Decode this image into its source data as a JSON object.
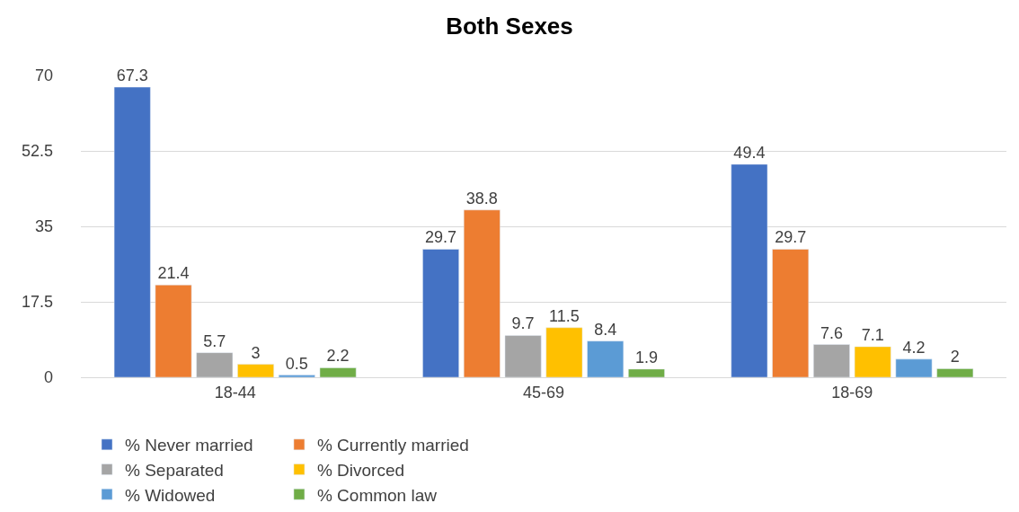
{
  "chart_data": {
    "type": "bar",
    "title": "Both Sexes",
    "categories": [
      "18-44",
      "45-69",
      "18-69"
    ],
    "series": [
      {
        "name": "% Never married",
        "color": "#4472c4",
        "values": [
          67.3,
          29.7,
          49.4
        ]
      },
      {
        "name": "% Currently married",
        "color": "#ed7d31",
        "values": [
          21.4,
          38.8,
          29.7
        ]
      },
      {
        "name": "% Separated",
        "color": "#a5a5a5",
        "values": [
          5.7,
          9.7,
          7.6
        ]
      },
      {
        "name": "% Divorced",
        "color": "#ffc000",
        "values": [
          3,
          11.5,
          7.1
        ]
      },
      {
        "name": "% Widowed",
        "color": "#5b9bd5",
        "values": [
          0.5,
          8.4,
          4.2
        ]
      },
      {
        "name": "% Common law",
        "color": "#70ad47",
        "values": [
          2.2,
          1.9,
          2
        ]
      }
    ],
    "ylim": [
      0,
      70
    ],
    "yticks": [
      0,
      17.5,
      35,
      52.5,
      70
    ],
    "grid": "y",
    "legend": "bottom",
    "data_labels": true
  }
}
